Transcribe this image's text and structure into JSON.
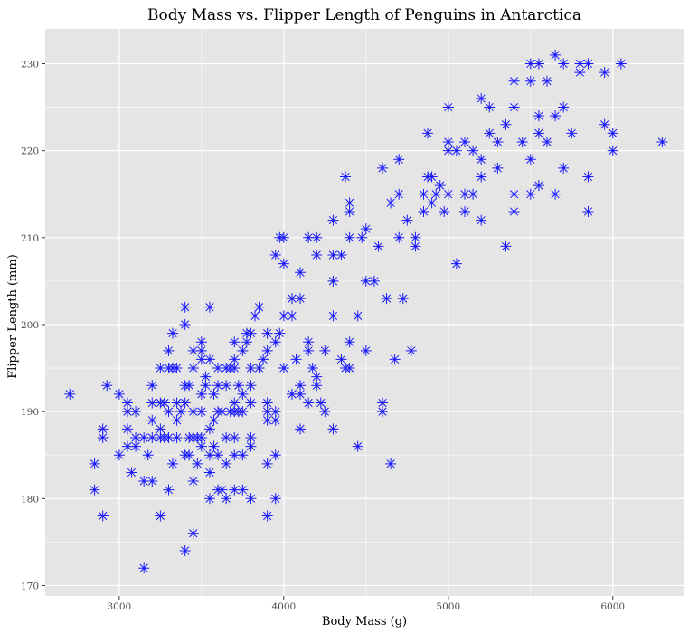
{
  "chart_data": {
    "type": "scatter",
    "title": "Body Mass vs. Flipper Length of Penguins in Antarctica",
    "xlabel": "Body Mass (g)",
    "ylabel": "Flipper Length (mm)",
    "xlim": [
      2550,
      6430
    ],
    "ylim": [
      168.8,
      234
    ],
    "xticks": [
      3000,
      4000,
      5000,
      6000
    ],
    "yticks": [
      170,
      180,
      190,
      200,
      210,
      220,
      230
    ],
    "grid": true,
    "marker": "asterisk",
    "colors": {
      "panel": "#e5e5e5",
      "grid": "#ffffff",
      "point": "#1a1aff",
      "tick": "#4d4d4d"
    },
    "points": [
      [
        2700,
        192
      ],
      [
        2850,
        184
      ],
      [
        2850,
        181
      ],
      [
        2900,
        188
      ],
      [
        2900,
        187
      ],
      [
        2900,
        178
      ],
      [
        2925,
        193
      ],
      [
        3000,
        185
      ],
      [
        3000,
        192
      ],
      [
        3050,
        191
      ],
      [
        3050,
        190
      ],
      [
        3050,
        188
      ],
      [
        3050,
        186
      ],
      [
        3075,
        183
      ],
      [
        3100,
        187
      ],
      [
        3100,
        186
      ],
      [
        3100,
        190
      ],
      [
        3150,
        182
      ],
      [
        3150,
        172
      ],
      [
        3150,
        187
      ],
      [
        3175,
        185
      ],
      [
        3200,
        191
      ],
      [
        3200,
        187
      ],
      [
        3200,
        182
      ],
      [
        3200,
        189
      ],
      [
        3200,
        193
      ],
      [
        3250,
        187
      ],
      [
        3250,
        188
      ],
      [
        3250,
        178
      ],
      [
        3250,
        195
      ],
      [
        3250,
        191
      ],
      [
        3275,
        191
      ],
      [
        3275,
        187
      ],
      [
        3300,
        181
      ],
      [
        3300,
        195
      ],
      [
        3300,
        190
      ],
      [
        3300,
        187
      ],
      [
        3300,
        197
      ],
      [
        3325,
        195
      ],
      [
        3325,
        184
      ],
      [
        3325,
        199
      ],
      [
        3350,
        189
      ],
      [
        3350,
        195
      ],
      [
        3350,
        191
      ],
      [
        3350,
        187
      ],
      [
        3375,
        190
      ],
      [
        3400,
        202
      ],
      [
        3400,
        174
      ],
      [
        3400,
        185
      ],
      [
        3400,
        191
      ],
      [
        3400,
        193
      ],
      [
        3400,
        200
      ],
      [
        3425,
        185
      ],
      [
        3425,
        187
      ],
      [
        3425,
        193
      ],
      [
        3450,
        182
      ],
      [
        3450,
        187
      ],
      [
        3450,
        195
      ],
      [
        3450,
        190
      ],
      [
        3450,
        197
      ],
      [
        3450,
        176
      ],
      [
        3475,
        187
      ],
      [
        3475,
        184
      ],
      [
        3500,
        196
      ],
      [
        3500,
        197
      ],
      [
        3500,
        190
      ],
      [
        3500,
        187
      ],
      [
        3500,
        192
      ],
      [
        3500,
        186
      ],
      [
        3500,
        198
      ],
      [
        3525,
        193
      ],
      [
        3525,
        194
      ],
      [
        3550,
        202
      ],
      [
        3550,
        185
      ],
      [
        3550,
        183
      ],
      [
        3550,
        196
      ],
      [
        3550,
        180
      ],
      [
        3550,
        188
      ],
      [
        3575,
        189
      ],
      [
        3575,
        192
      ],
      [
        3575,
        186
      ],
      [
        3600,
        190
      ],
      [
        3600,
        185
      ],
      [
        3600,
        181
      ],
      [
        3600,
        195
      ],
      [
        3600,
        193
      ],
      [
        3625,
        190
      ],
      [
        3625,
        181
      ],
      [
        3650,
        187
      ],
      [
        3650,
        180
      ],
      [
        3650,
        195
      ],
      [
        3650,
        193
      ],
      [
        3650,
        184
      ],
      [
        3675,
        195
      ],
      [
        3675,
        190
      ],
      [
        3700,
        198
      ],
      [
        3700,
        191
      ],
      [
        3700,
        190
      ],
      [
        3700,
        195
      ],
      [
        3700,
        196
      ],
      [
        3700,
        187
      ],
      [
        3700,
        185
      ],
      [
        3700,
        181
      ],
      [
        3725,
        190
      ],
      [
        3725,
        193
      ],
      [
        3750,
        181
      ],
      [
        3750,
        190
      ],
      [
        3750,
        197
      ],
      [
        3750,
        185
      ],
      [
        3750,
        192
      ],
      [
        3775,
        198
      ],
      [
        3775,
        199
      ],
      [
        3800,
        191
      ],
      [
        3800,
        199
      ],
      [
        3800,
        193
      ],
      [
        3800,
        180
      ],
      [
        3800,
        187
      ],
      [
        3800,
        186
      ],
      [
        3800,
        195
      ],
      [
        3825,
        201
      ],
      [
        3850,
        202
      ],
      [
        3850,
        195
      ],
      [
        3875,
        196
      ],
      [
        3900,
        184
      ],
      [
        3900,
        190
      ],
      [
        3900,
        191
      ],
      [
        3900,
        189
      ],
      [
        3900,
        178
      ],
      [
        3900,
        197
      ],
      [
        3900,
        199
      ],
      [
        3950,
        180
      ],
      [
        3950,
        185
      ],
      [
        3950,
        190
      ],
      [
        3950,
        189
      ],
      [
        3950,
        198
      ],
      [
        3950,
        208
      ],
      [
        3975,
        210
      ],
      [
        3975,
        199
      ],
      [
        4000,
        195
      ],
      [
        4000,
        201
      ],
      [
        4000,
        207
      ],
      [
        4000,
        210
      ],
      [
        4050,
        203
      ],
      [
        4050,
        192
      ],
      [
        4050,
        201
      ],
      [
        4075,
        196
      ],
      [
        4100,
        193
      ],
      [
        4100,
        188
      ],
      [
        4100,
        192
      ],
      [
        4100,
        206
      ],
      [
        4100,
        203
      ],
      [
        4150,
        191
      ],
      [
        4150,
        197
      ],
      [
        4150,
        210
      ],
      [
        4150,
        198
      ],
      [
        4175,
        195
      ],
      [
        4200,
        193
      ],
      [
        4200,
        194
      ],
      [
        4200,
        210
      ],
      [
        4200,
        208
      ],
      [
        4225,
        191
      ],
      [
        4250,
        190
      ],
      [
        4250,
        197
      ],
      [
        4300,
        208
      ],
      [
        4300,
        201
      ],
      [
        4300,
        212
      ],
      [
        4300,
        188
      ],
      [
        4300,
        205
      ],
      [
        4350,
        208
      ],
      [
        4350,
        196
      ],
      [
        4375,
        217
      ],
      [
        4375,
        195
      ],
      [
        4400,
        214
      ],
      [
        4400,
        198
      ],
      [
        4400,
        210
      ],
      [
        4400,
        195
      ],
      [
        4400,
        213
      ],
      [
        4450,
        186
      ],
      [
        4450,
        201
      ],
      [
        4475,
        210
      ],
      [
        4500,
        197
      ],
      [
        4500,
        211
      ],
      [
        4500,
        205
      ],
      [
        4550,
        205
      ],
      [
        4575,
        209
      ],
      [
        4600,
        190
      ],
      [
        4600,
        191
      ],
      [
        4600,
        218
      ],
      [
        4625,
        203
      ],
      [
        4650,
        214
      ],
      [
        4650,
        184
      ],
      [
        4675,
        196
      ],
      [
        4700,
        215
      ],
      [
        4700,
        219
      ],
      [
        4700,
        210
      ],
      [
        4725,
        203
      ],
      [
        4750,
        212
      ],
      [
        4775,
        197
      ],
      [
        4800,
        210
      ],
      [
        4800,
        209
      ],
      [
        4850,
        215
      ],
      [
        4850,
        213
      ],
      [
        4875,
        222
      ],
      [
        4875,
        217
      ],
      [
        4900,
        217
      ],
      [
        4900,
        214
      ],
      [
        4925,
        215
      ],
      [
        4950,
        216
      ],
      [
        4975,
        213
      ],
      [
        5000,
        225
      ],
      [
        5000,
        220
      ],
      [
        5000,
        215
      ],
      [
        5000,
        221
      ],
      [
        5050,
        220
      ],
      [
        5050,
        207
      ],
      [
        5100,
        221
      ],
      [
        5100,
        215
      ],
      [
        5100,
        213
      ],
      [
        5150,
        215
      ],
      [
        5150,
        220
      ],
      [
        5200,
        226
      ],
      [
        5200,
        219
      ],
      [
        5200,
        212
      ],
      [
        5200,
        217
      ],
      [
        5250,
        222
      ],
      [
        5250,
        225
      ],
      [
        5300,
        218
      ],
      [
        5300,
        221
      ],
      [
        5350,
        223
      ],
      [
        5350,
        209
      ],
      [
        5400,
        213
      ],
      [
        5400,
        228
      ],
      [
        5400,
        225
      ],
      [
        5400,
        215
      ],
      [
        5450,
        221
      ],
      [
        5500,
        230
      ],
      [
        5500,
        219
      ],
      [
        5500,
        228
      ],
      [
        5500,
        215
      ],
      [
        5550,
        224
      ],
      [
        5550,
        230
      ],
      [
        5550,
        216
      ],
      [
        5550,
        222
      ],
      [
        5600,
        228
      ],
      [
        5600,
        221
      ],
      [
        5650,
        231
      ],
      [
        5650,
        215
      ],
      [
        5650,
        224
      ],
      [
        5700,
        230
      ],
      [
        5700,
        225
      ],
      [
        5700,
        218
      ],
      [
        5750,
        222
      ],
      [
        5800,
        230
      ],
      [
        5800,
        229
      ],
      [
        5850,
        217
      ],
      [
        5850,
        230
      ],
      [
        5850,
        213
      ],
      [
        5950,
        229
      ],
      [
        5950,
        223
      ],
      [
        6000,
        220
      ],
      [
        6000,
        222
      ],
      [
        6050,
        230
      ],
      [
        6300,
        221
      ]
    ]
  }
}
